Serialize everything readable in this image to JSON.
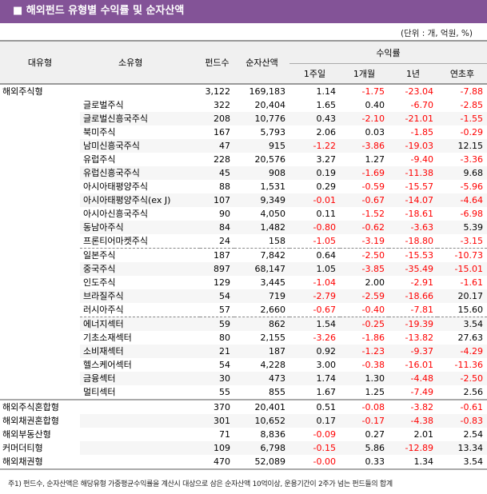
{
  "title": "■ 해외펀드 유형별 수익률 및 순자산액",
  "unit": "(단위 : 개, 억원, %)",
  "headers": {
    "major": "대유형",
    "minor": "소유형",
    "count": "펀드수",
    "nav": "순자산액",
    "returns": "수익률",
    "w1": "1주일",
    "m1": "1개월",
    "y1": "1년",
    "ytd": "연초후"
  },
  "rows": [
    {
      "major": "해외주식형",
      "minor": "",
      "count": "3,122",
      "nav": "169,183",
      "w1": "1.14",
      "m1": "-1.75",
      "y1": "-23.04",
      "ytd": "-7.88"
    },
    {
      "major": "",
      "minor": "글로벌주식",
      "count": "322",
      "nav": "20,404",
      "w1": "1.65",
      "m1": "0.40",
      "y1": "-6.70",
      "ytd": "-2.85"
    },
    {
      "major": "",
      "minor": "글로벌신흥국주식",
      "count": "208",
      "nav": "10,776",
      "w1": "0.43",
      "m1": "-2.10",
      "y1": "-21.01",
      "ytd": "-1.55"
    },
    {
      "major": "",
      "minor": "북미주식",
      "count": "167",
      "nav": "5,793",
      "w1": "2.06",
      "m1": "0.03",
      "y1": "-1.85",
      "ytd": "-0.29"
    },
    {
      "major": "",
      "minor": "남미신흥국주식",
      "count": "47",
      "nav": "915",
      "w1": "-1.22",
      "m1": "-3.86",
      "y1": "-19.03",
      "ytd": "12.15"
    },
    {
      "major": "",
      "minor": "유럽주식",
      "count": "228",
      "nav": "20,576",
      "w1": "3.27",
      "m1": "1.27",
      "y1": "-9.40",
      "ytd": "-3.36"
    },
    {
      "major": "",
      "minor": "유럽신흥국주식",
      "count": "45",
      "nav": "908",
      "w1": "0.19",
      "m1": "-1.69",
      "y1": "-11.38",
      "ytd": "9.68"
    },
    {
      "major": "",
      "minor": "아시아태평양주식",
      "count": "88",
      "nav": "1,531",
      "w1": "0.29",
      "m1": "-0.59",
      "y1": "-15.57",
      "ytd": "-5.96"
    },
    {
      "major": "",
      "minor": "아시아태평양주식(ex J)",
      "count": "107",
      "nav": "9,349",
      "w1": "-0.01",
      "m1": "-0.67",
      "y1": "-14.07",
      "ytd": "-4.64"
    },
    {
      "major": "",
      "minor": "아시아신흥국주식",
      "count": "90",
      "nav": "4,050",
      "w1": "0.11",
      "m1": "-1.52",
      "y1": "-18.61",
      "ytd": "-6.98"
    },
    {
      "major": "",
      "minor": "동남아주식",
      "count": "84",
      "nav": "1,482",
      "w1": "-0.80",
      "m1": "-0.62",
      "y1": "-3.63",
      "ytd": "5.39"
    },
    {
      "major": "",
      "minor": "프론티어마켓주식",
      "count": "24",
      "nav": "158",
      "w1": "-1.05",
      "m1": "-3.19",
      "y1": "-18.80",
      "ytd": "-3.15"
    },
    {
      "major": "",
      "minor": "일본주식",
      "count": "187",
      "nav": "7,842",
      "w1": "0.64",
      "m1": "-2.50",
      "y1": "-15.53",
      "ytd": "-10.73"
    },
    {
      "major": "",
      "minor": "중국주식",
      "count": "897",
      "nav": "68,147",
      "w1": "1.05",
      "m1": "-3.85",
      "y1": "-35.49",
      "ytd": "-15.01"
    },
    {
      "major": "",
      "minor": "인도주식",
      "count": "129",
      "nav": "3,445",
      "w1": "-1.04",
      "m1": "2.00",
      "y1": "-2.91",
      "ytd": "-1.61"
    },
    {
      "major": "",
      "minor": "브라질주식",
      "count": "54",
      "nav": "719",
      "w1": "-2.79",
      "m1": "-2.59",
      "y1": "-18.66",
      "ytd": "20.17"
    },
    {
      "major": "",
      "minor": "러시아주식",
      "count": "57",
      "nav": "2,660",
      "w1": "-0.67",
      "m1": "-0.40",
      "y1": "-7.81",
      "ytd": "15.60"
    },
    {
      "major": "",
      "minor": "에너지섹터",
      "count": "59",
      "nav": "862",
      "w1": "1.54",
      "m1": "-0.25",
      "y1": "-19.39",
      "ytd": "3.54"
    },
    {
      "major": "",
      "minor": "기초소재섹터",
      "count": "80",
      "nav": "2,155",
      "w1": "-3.26",
      "m1": "-1.86",
      "y1": "-13.82",
      "ytd": "27.63"
    },
    {
      "major": "",
      "minor": "소비재섹터",
      "count": "21",
      "nav": "187",
      "w1": "0.92",
      "m1": "-1.23",
      "y1": "-9.37",
      "ytd": "-4.29"
    },
    {
      "major": "",
      "minor": "헬스케어섹터",
      "count": "54",
      "nav": "4,228",
      "w1": "3.00",
      "m1": "-0.38",
      "y1": "-16.01",
      "ytd": "-11.36"
    },
    {
      "major": "",
      "minor": "금융섹터",
      "count": "30",
      "nav": "473",
      "w1": "1.74",
      "m1": "1.30",
      "y1": "-4.48",
      "ytd": "-2.50"
    },
    {
      "major": "",
      "minor": "멀티섹터",
      "count": "55",
      "nav": "855",
      "w1": "1.67",
      "m1": "1.25",
      "y1": "-7.49",
      "ytd": "2.56"
    },
    {
      "major": "해외주식혼합형",
      "minor": "",
      "count": "370",
      "nav": "20,401",
      "w1": "0.51",
      "m1": "-0.08",
      "y1": "-3.82",
      "ytd": "-0.61"
    },
    {
      "major": "해외채권혼합형",
      "minor": "",
      "count": "301",
      "nav": "10,652",
      "w1": "0.17",
      "m1": "-0.17",
      "y1": "-4.38",
      "ytd": "-0.83"
    },
    {
      "major": "해외부동산형",
      "minor": "",
      "count": "71",
      "nav": "8,836",
      "w1": "-0.09",
      "m1": "0.27",
      "y1": "2.01",
      "ytd": "2.54"
    },
    {
      "major": "커머더티형",
      "minor": "",
      "count": "109",
      "nav": "6,798",
      "w1": "-0.15",
      "m1": "5.86",
      "y1": "-12.89",
      "ytd": "13.34"
    },
    {
      "major": "해외채권형",
      "minor": "",
      "count": "470",
      "nav": "52,089",
      "w1": "-0.00",
      "m1": "0.33",
      "y1": "1.34",
      "ytd": "3.54"
    }
  ],
  "footnote": "주1) 펀드수, 순자산액은 해당유형 가중평균수익률을 계산시 대상으로 삼은 순자산액 10억이상, 운용기간이 2주가 넘는 펀드들의 합계",
  "colors": {
    "title_bg": "#835397",
    "negative": "#ff0000",
    "header_bg": "#f0f0f0"
  }
}
